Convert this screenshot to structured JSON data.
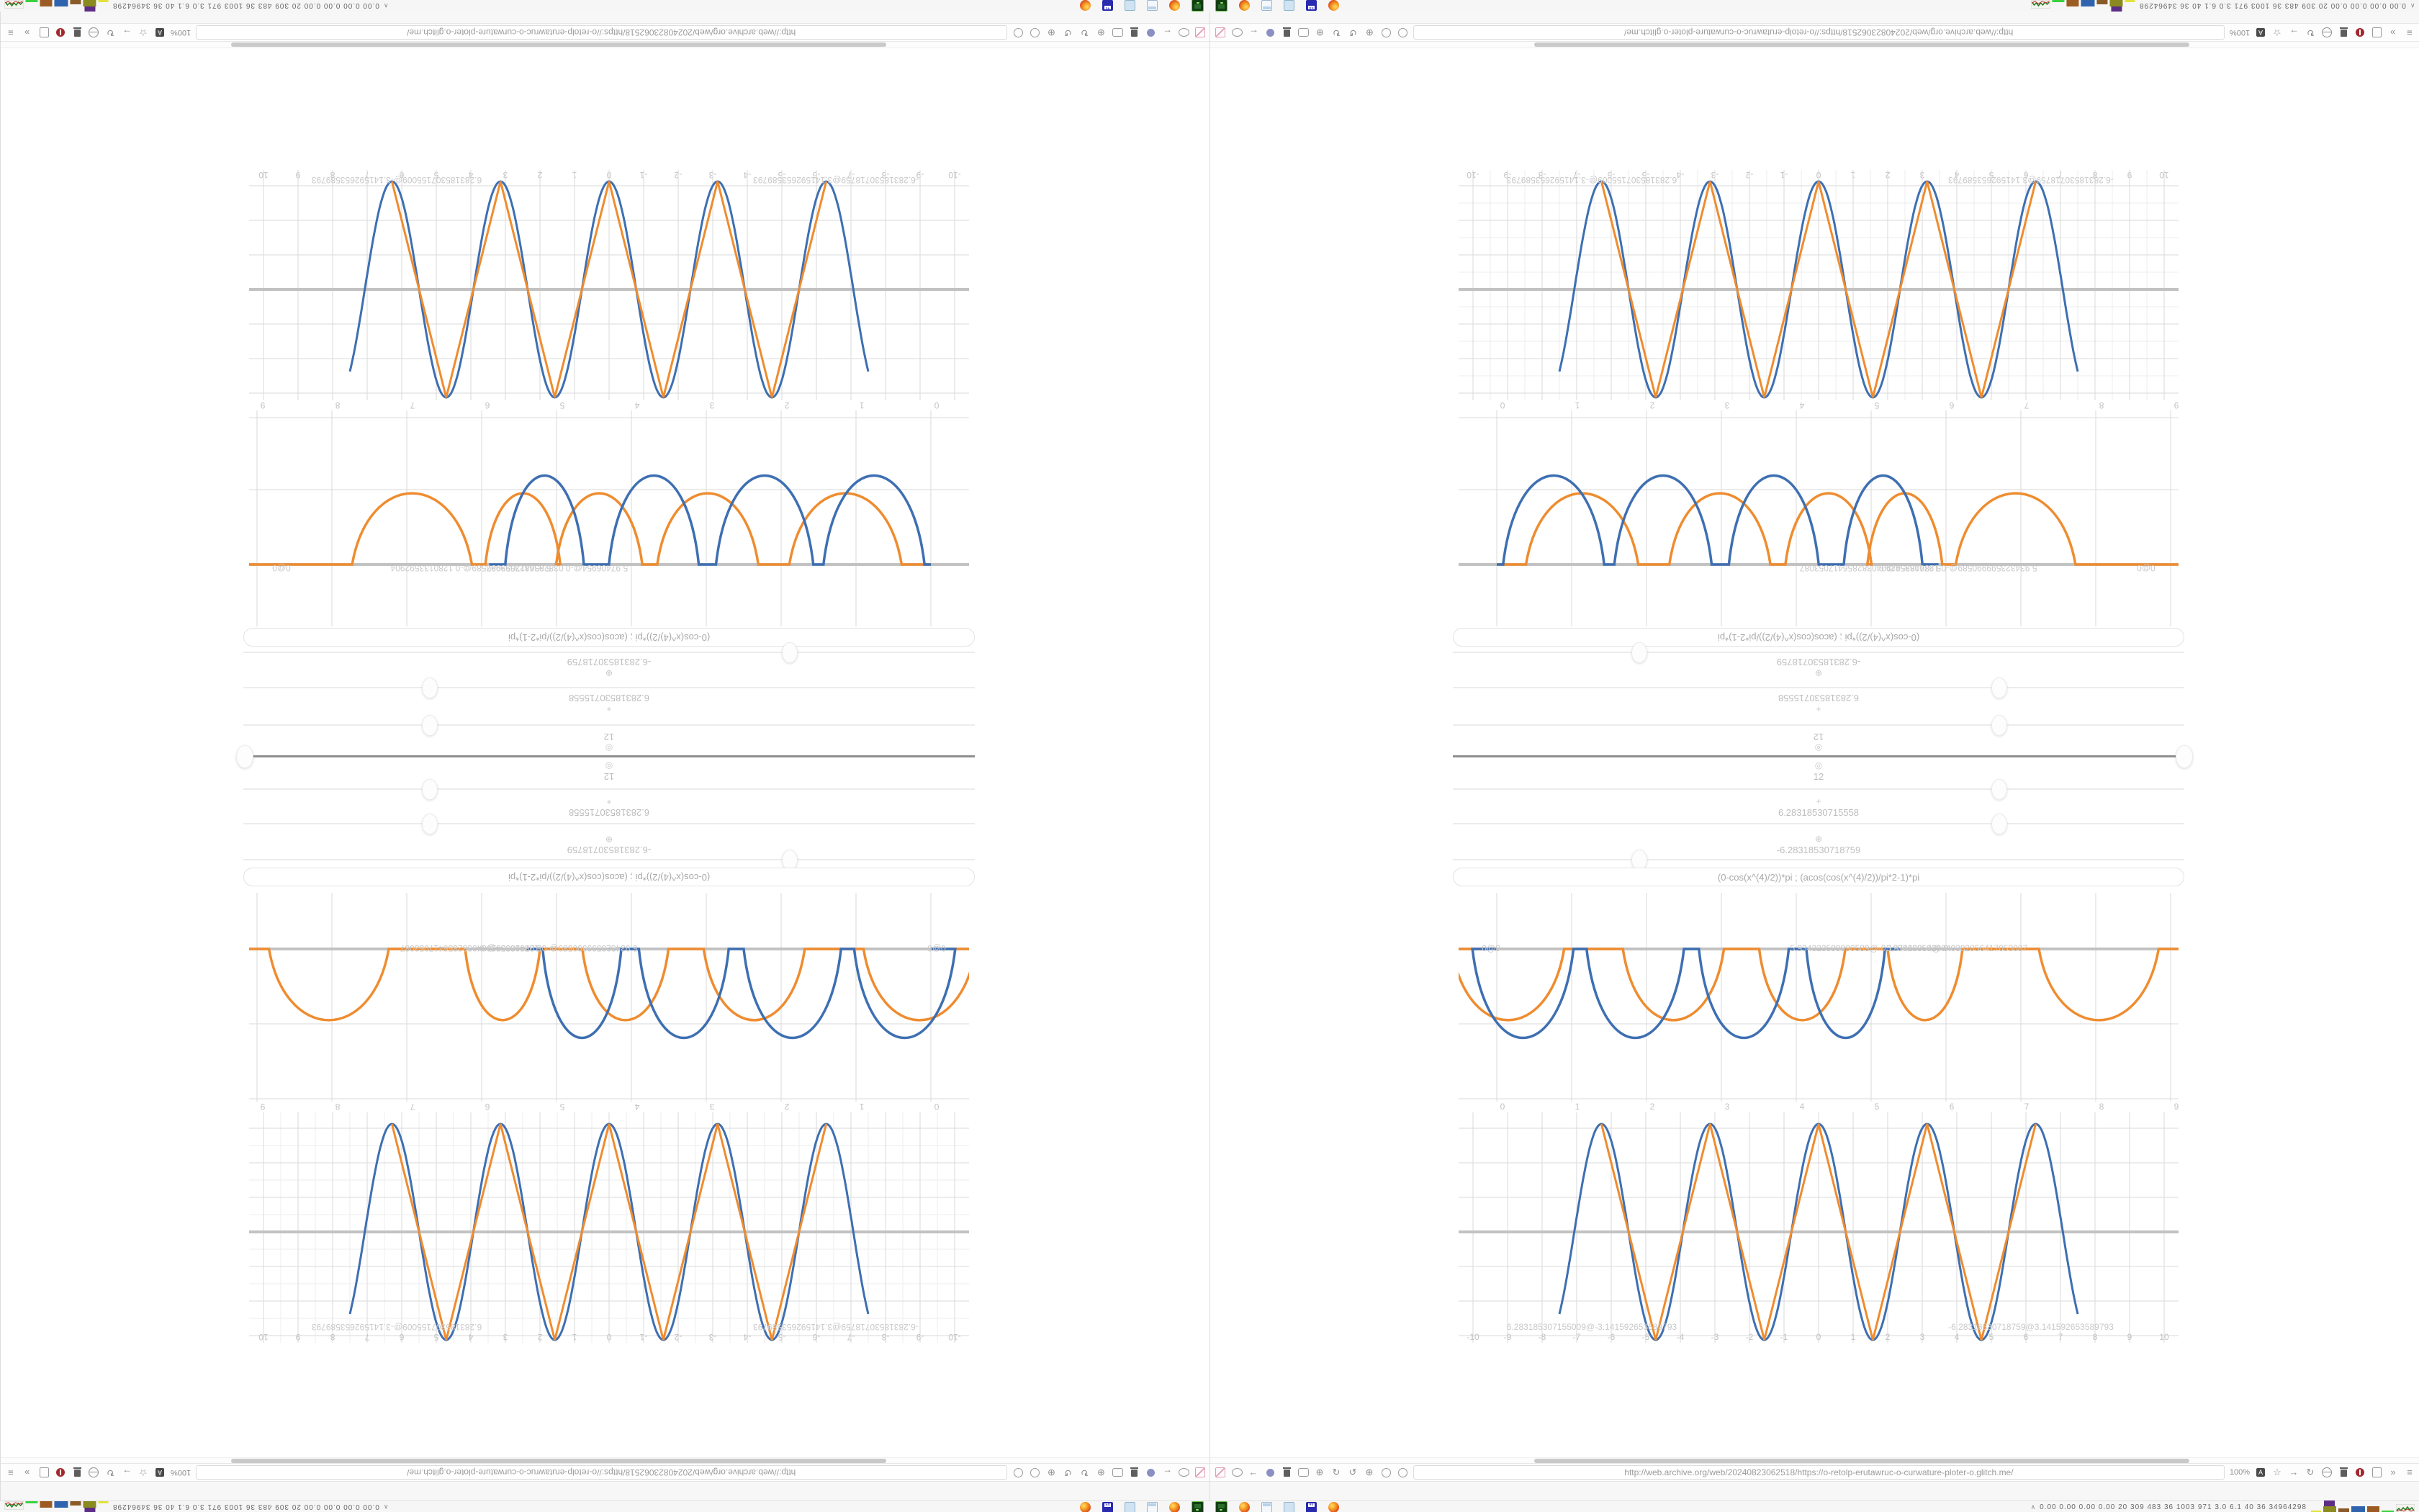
{
  "desktop": {
    "corner_chevron_top": "∨",
    "corner_chevron_bottom": "∧",
    "grip_mark": "∥ ∥"
  },
  "panel": {
    "tray_numbers": "0.00 0.00 0.00 0.00   20   309   483   36   1003 971   3.0   6.1   40   36  34964298",
    "tray_chevron": "∧",
    "tray_widget_names": [
      "yellow-meter",
      "olive-meter",
      "purple-meter",
      "brown-meter",
      "blue-meter",
      "tan-meter",
      "green-line-meter",
      "cpu-graph"
    ],
    "app_icon_names": [
      "firefox",
      "floppy-ed",
      "files",
      "calculator",
      "firefox",
      "terminal",
      "terminal",
      "firefox",
      "calculator",
      "files",
      "floppy-49",
      "firefox"
    ],
    "floppy_labels": [
      "Ed",
      "49"
    ]
  },
  "browser": {
    "url": "http://web.archive.org/web/20240823062518/https://o-retolp-erutawruc-o-curwature-ploter-o.glitch.me/",
    "zoom_label": "100%",
    "start_icon_names": [
      "pencil-disabled",
      "oval",
      "back-arrow",
      "orb",
      "trash",
      "bubble",
      "target",
      "reload-cw",
      "reload-ccw",
      "target",
      "circle",
      "circle"
    ],
    "end_icon_names": [
      "zoom-level",
      "font-size",
      "bookmark-star",
      "forward-arrow",
      "reload",
      "globe",
      "trash",
      "shield-badge",
      "thumb-panel",
      "chevrons",
      "menu"
    ],
    "end_icon_glyphs": {
      "bookmark-star": "☆",
      "forward-arrow": "→",
      "reload": "↻",
      "chevrons": "»",
      "menu": "≡",
      "back-arrow": "←",
      "reload-cw": "↻",
      "reload-ccw": "↺",
      "target": "⊕"
    }
  },
  "page": {
    "formula": "(0-cos(x^(4)/2))*pi ; (acos(cos(x^(4)/2))/pi*2-1)*pi",
    "slider_values": [
      "-6.28318530718759",
      "6.28318530715558",
      "12"
    ],
    "value_rows": [
      {
        "value": "-6.28318530718759",
        "icon": "move-handle-icon",
        "glyph": "⊕"
      },
      {
        "value": "6.28318530715558",
        "icon": "plus-handle-icon",
        "glyph": "+"
      },
      {
        "value": "12",
        "icon": "target-handle-icon",
        "glyph": "◎"
      }
    ],
    "slider_thumb_pct_left_window": [
      74.6,
      25.4,
      25.4,
      25.4,
      25.4,
      74.6
    ],
    "slider_thumb_pct_right_window": [
      25.4,
      74.6,
      74.6,
      74.6,
      74.6,
      25.4
    ]
  },
  "chart_data": [
    {
      "type": "line",
      "id": "sine-plot",
      "xlabel": "",
      "ylabel": "",
      "xlim": [
        -10,
        10
      ],
      "grid": true,
      "tick_labels": [
        "-10",
        "-9",
        "-8",
        "-7",
        "-6",
        "-5",
        "-4",
        "-3",
        "-2",
        "-1",
        "0",
        "1",
        "2",
        "3",
        "4",
        "5",
        "6",
        "7",
        "8",
        "9",
        "10"
      ],
      "series": [
        {
          "name": "blue-cosine",
          "color": "#3e6fb2",
          "formula": "pi*cos(2x)",
          "period": 3.14159,
          "amplitude": 3.14159,
          "domain": [
            -7.5,
            7.5
          ]
        },
        {
          "name": "orange-triangle",
          "color": "#ef8c2f",
          "formula": "pi*triangle(2x)",
          "period": 3.14159,
          "amplitude": 3.14159,
          "domain": [
            -7.05,
            7.05
          ]
        }
      ],
      "annotations": [
        "6.283185307155009@-3.141592653589793",
        "-6.28318530718759@3.141592653589793"
      ]
    },
    {
      "type": "line",
      "id": "bump-plot",
      "xlim": [
        0,
        9.6
      ],
      "grid": true,
      "tick_labels": [
        "0",
        "1",
        "2",
        "3",
        "4",
        "5",
        "6",
        "7",
        "8",
        "9"
      ],
      "series": [
        {
          "name": "blue-bumps",
          "color": "#3e6fb2",
          "bump_centers_up": [
            0.76,
            2.22,
            3.7,
            5.16
          ],
          "bump_centers_down": [
            0.35,
            1.85,
            3.3,
            4.66
          ]
        },
        {
          "name": "orange-bumps",
          "color": "#ef8c2f",
          "bump_centers_up": [
            1.14,
            2.98,
            4.43,
            5.45,
            6.93
          ],
          "bump_centers_down": [
            0.15,
            2.36,
            4.08,
            5.72,
            8.04
          ]
        }
      ],
      "annotations": [
        "0@0",
        "5.934323599990589@-0.1280133592904",
        "5.97406954@-0.0382856417053087"
      ]
    }
  ]
}
